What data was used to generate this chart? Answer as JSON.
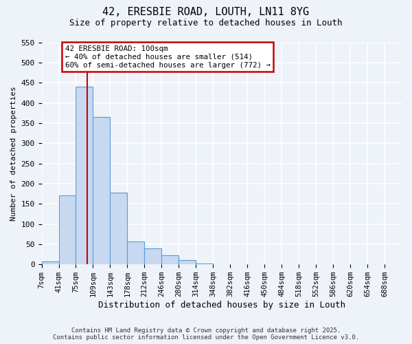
{
  "title": "42, ERESBIE ROAD, LOUTH, LN11 8YG",
  "subtitle": "Size of property relative to detached houses in Louth",
  "xlabel": "Distribution of detached houses by size in Louth",
  "ylabel": "Number of detached properties",
  "bar_values": [
    8,
    170,
    440,
    365,
    178,
    56,
    40,
    22,
    10,
    2,
    0,
    0,
    0,
    0,
    0,
    0,
    0,
    0,
    0,
    0,
    0
  ],
  "bar_labels": [
    "7sqm",
    "41sqm",
    "75sqm",
    "109sqm",
    "143sqm",
    "178sqm",
    "212sqm",
    "246sqm",
    "280sqm",
    "314sqm",
    "348sqm",
    "382sqm",
    "416sqm",
    "450sqm",
    "484sqm",
    "518sqm",
    "552sqm",
    "586sqm",
    "620sqm",
    "654sqm",
    "688sqm"
  ],
  "bar_color": "#c6d9f0",
  "bar_edge_color": "#5b9bd5",
  "bar_edge_width": 0.8,
  "ylim": [
    0,
    550
  ],
  "yticks": [
    0,
    50,
    100,
    150,
    200,
    250,
    300,
    350,
    400,
    450,
    500,
    550
  ],
  "vline_x": 2.65,
  "vline_color": "#cc0000",
  "annotation_text": "42 ERESBIE ROAD: 100sqm\n← 40% of detached houses are smaller (514)\n60% of semi-detached houses are larger (772) →",
  "annotation_box_color": "#cc0000",
  "footer_line1": "Contains HM Land Registry data © Crown copyright and database right 2025.",
  "footer_line2": "Contains public sector information licensed under the Open Government Licence v3.0.",
  "bg_color": "#eef2f9",
  "grid_color": "#ffffff",
  "font_family": "monospace"
}
